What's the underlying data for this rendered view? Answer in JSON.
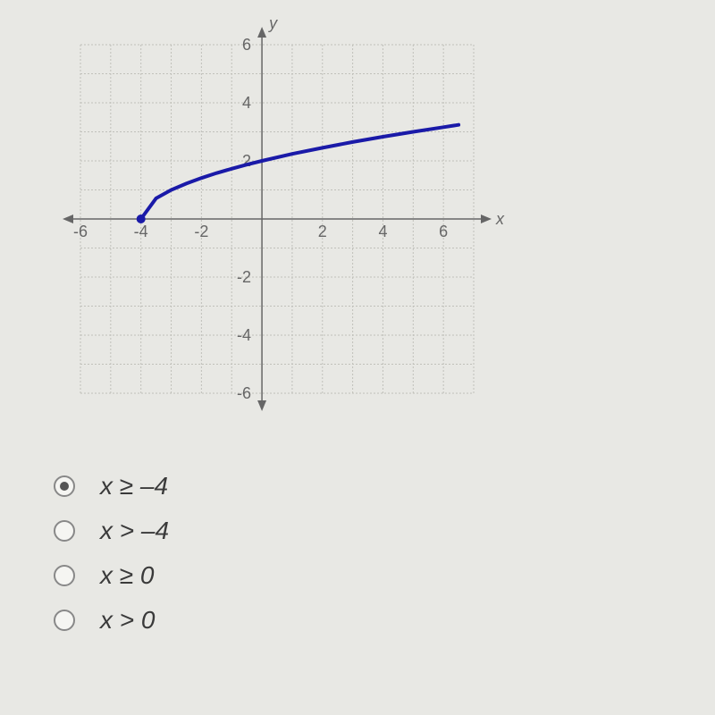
{
  "chart": {
    "type": "line",
    "xlim": [
      -6,
      7
    ],
    "ylim": [
      -6,
      6
    ],
    "tick_step": 2,
    "x_ticks": [
      -6,
      -4,
      -2,
      0,
      2,
      4,
      6
    ],
    "y_ticks": [
      -6,
      -4,
      -2,
      0,
      2,
      4,
      6
    ],
    "x_label": "x",
    "y_label": "y",
    "grid_color": "#c0c0ba",
    "axis_color": "#666666",
    "background_color": "#e8e8e4",
    "curve": {
      "color": "#1a1aa8",
      "width": 4,
      "start_point": {
        "x": -4,
        "y": 0,
        "filled": true,
        "radius": 5
      },
      "points": [
        {
          "x": -4.0,
          "y": 0.0
        },
        {
          "x": -3.5,
          "y": 0.71
        },
        {
          "x": -3.0,
          "y": 1.0
        },
        {
          "x": -2.5,
          "y": 1.22
        },
        {
          "x": -2.0,
          "y": 1.41
        },
        {
          "x": -1.5,
          "y": 1.58
        },
        {
          "x": -1.0,
          "y": 1.73
        },
        {
          "x": -0.5,
          "y": 1.87
        },
        {
          "x": 0.0,
          "y": 2.0
        },
        {
          "x": 1.0,
          "y": 2.24
        },
        {
          "x": 2.0,
          "y": 2.45
        },
        {
          "x": 3.0,
          "y": 2.65
        },
        {
          "x": 4.0,
          "y": 2.83
        },
        {
          "x": 5.0,
          "y": 3.0
        },
        {
          "x": 6.0,
          "y": 3.16
        },
        {
          "x": 6.5,
          "y": 3.24
        }
      ]
    }
  },
  "options": [
    {
      "label": "x ≥ –4",
      "selected": true
    },
    {
      "label": "x > –4",
      "selected": false
    },
    {
      "label": "x ≥ 0",
      "selected": false
    },
    {
      "label": "x > 0",
      "selected": false
    }
  ]
}
